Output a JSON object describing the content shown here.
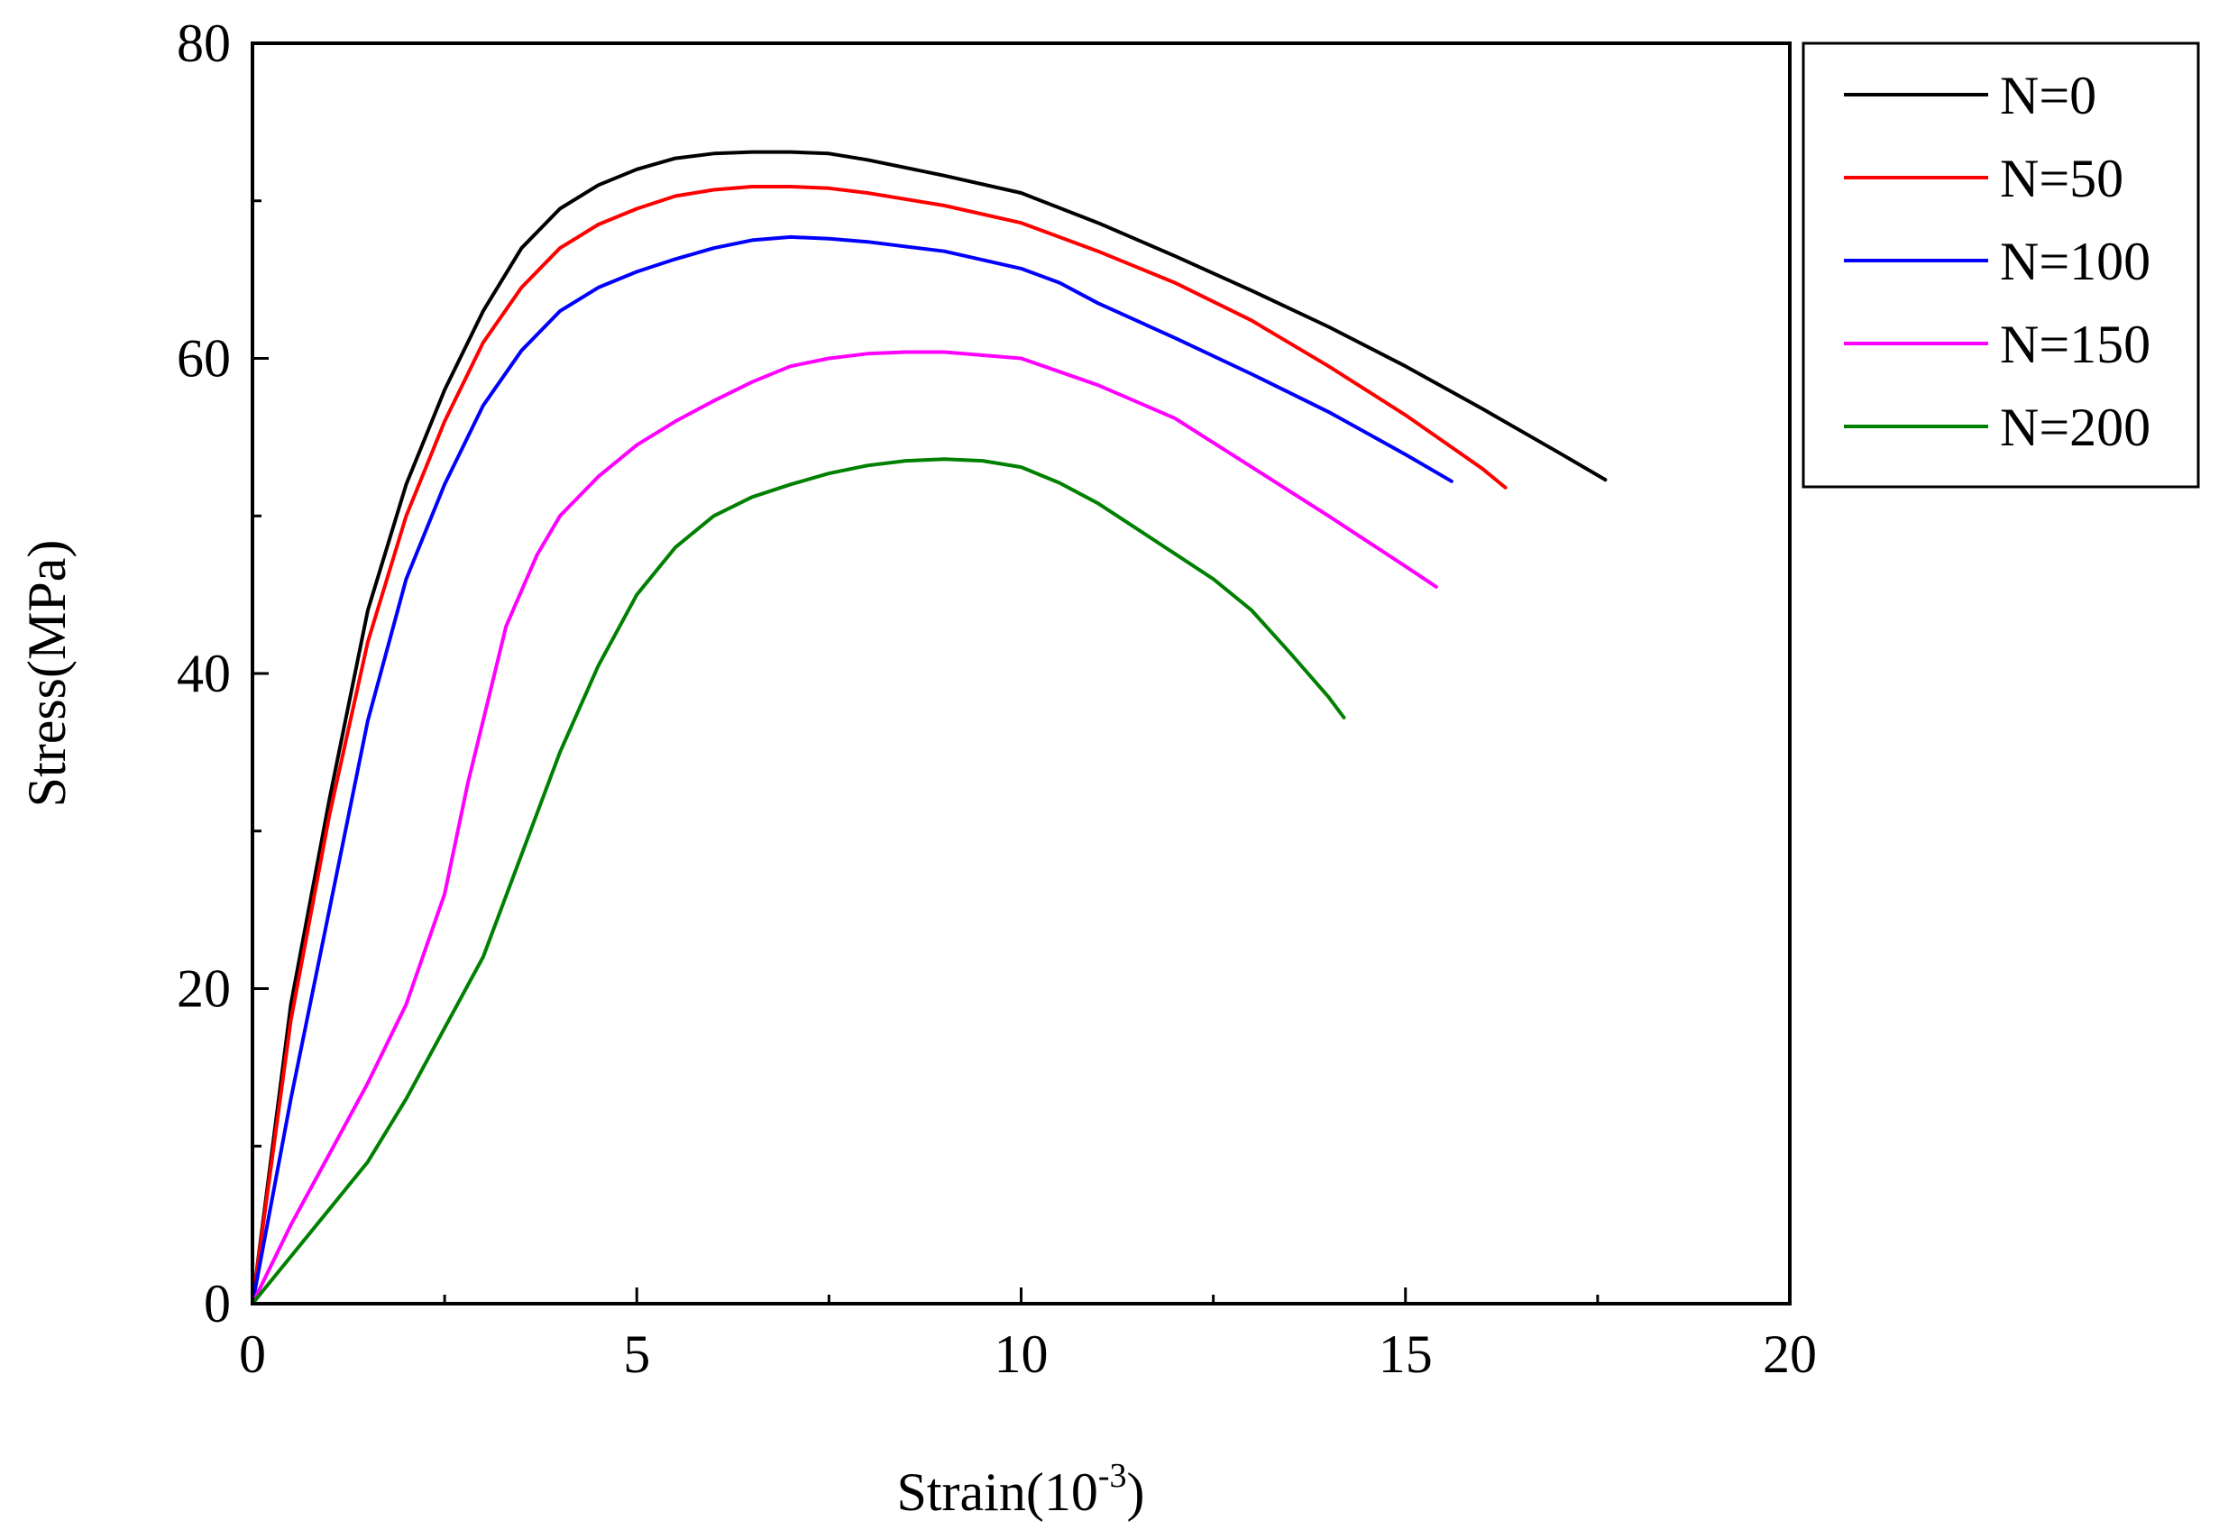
{
  "chart_data": {
    "type": "line",
    "title": "",
    "xlabel": "Strain(10",
    "xlabel_sup": "-3",
    "xlabel_end": ")",
    "ylabel": "Stress(MPa)",
    "xlim": [
      0,
      20
    ],
    "ylim": [
      0,
      80
    ],
    "xticks": [
      0,
      5,
      10,
      15,
      20
    ],
    "xtick_labels": [
      "0",
      "5",
      "10",
      "15",
      "20"
    ],
    "xminor": [
      2.5,
      7.5,
      12.5,
      17.5
    ],
    "yticks": [
      0,
      20,
      40,
      60,
      80
    ],
    "ytick_labels": [
      "0",
      "20",
      "40",
      "60",
      "80"
    ],
    "yminor": [
      10,
      30,
      50,
      70
    ],
    "grid": false,
    "legend_position": "right-top-outside",
    "series": [
      {
        "name": "N=0",
        "color": "#000000",
        "x": [
          0,
          0.5,
          1.0,
          1.5,
          2.0,
          2.5,
          3.0,
          3.5,
          4.0,
          4.5,
          5.0,
          5.5,
          6.0,
          6.5,
          7.0,
          7.5,
          8.0,
          9.0,
          10.0,
          11.0,
          12.0,
          13.0,
          14.0,
          15.0,
          16.0,
          17.0,
          17.6
        ],
        "y": [
          0,
          19,
          32,
          44,
          52,
          58,
          63,
          67,
          69.5,
          71,
          72,
          72.7,
          73,
          73.1,
          73.1,
          73.0,
          72.6,
          71.6,
          70.5,
          68.6,
          66.5,
          64.3,
          62,
          59.5,
          56.8,
          54,
          52.3
        ]
      },
      {
        "name": "N=50",
        "color": "#ff0000",
        "x": [
          0,
          0.5,
          1.0,
          1.5,
          2.0,
          2.5,
          3.0,
          3.5,
          4.0,
          4.5,
          5.0,
          5.5,
          6.0,
          6.5,
          7.0,
          7.5,
          8.0,
          9.0,
          10.0,
          11.0,
          12.0,
          13.0,
          14.0,
          15.0,
          16.0,
          16.3
        ],
        "y": [
          0,
          18,
          31,
          42,
          50,
          56,
          61,
          64.5,
          67,
          68.5,
          69.5,
          70.3,
          70.7,
          70.9,
          70.9,
          70.8,
          70.5,
          69.7,
          68.6,
          66.8,
          64.8,
          62.4,
          59.5,
          56.4,
          53,
          51.8
        ]
      },
      {
        "name": "N=100",
        "color": "#0000ff",
        "x": [
          0,
          0.5,
          1.0,
          1.5,
          2.0,
          2.5,
          3.0,
          3.5,
          4.0,
          4.5,
          5.0,
          5.5,
          6.0,
          6.5,
          7.0,
          7.5,
          8.0,
          9.0,
          10.0,
          10.5,
          11.0,
          12.0,
          13.0,
          14.0,
          15.0,
          15.6
        ],
        "y": [
          0,
          13,
          25,
          37,
          46,
          52,
          57,
          60.5,
          63,
          64.5,
          65.5,
          66.3,
          67,
          67.5,
          67.7,
          67.6,
          67.4,
          66.8,
          65.7,
          64.8,
          63.5,
          61.3,
          59,
          56.6,
          53.9,
          52.2
        ]
      },
      {
        "name": "N=150",
        "color": "#ff00ff",
        "x": [
          0,
          0.5,
          1.0,
          1.5,
          2.0,
          2.5,
          2.8,
          3.0,
          3.3,
          3.7,
          4.0,
          4.5,
          5.0,
          5.5,
          6.0,
          6.5,
          7.0,
          7.5,
          8.0,
          8.5,
          9.0,
          10.0,
          11.0,
          12.0,
          13.0,
          14.0,
          15.0,
          15.4
        ],
        "y": [
          0,
          5,
          9.5,
          14,
          19,
          26,
          33,
          37,
          43,
          47.5,
          50,
          52.5,
          54.5,
          56,
          57.3,
          58.5,
          59.5,
          60,
          60.3,
          60.4,
          60.4,
          60,
          58.3,
          56.2,
          53.1,
          50,
          46.8,
          45.5
        ]
      },
      {
        "name": "N=200",
        "color": "#008000",
        "x": [
          0,
          0.5,
          1.0,
          1.5,
          2.0,
          2.5,
          3.0,
          3.5,
          4.0,
          4.5,
          5.0,
          5.5,
          6.0,
          6.5,
          7.0,
          7.5,
          8.0,
          8.5,
          9.0,
          9.5,
          10.0,
          10.5,
          11.0,
          11.5,
          12.0,
          12.5,
          13.0,
          13.5,
          14.0,
          14.2
        ],
        "y": [
          0,
          3,
          6,
          9,
          13,
          17.5,
          22,
          28.5,
          35,
          40.5,
          45,
          48,
          50,
          51.2,
          52,
          52.7,
          53.2,
          53.5,
          53.6,
          53.5,
          53.1,
          52.1,
          50.8,
          49.2,
          47.6,
          46,
          44,
          41.3,
          38.5,
          37.2
        ]
      }
    ]
  }
}
